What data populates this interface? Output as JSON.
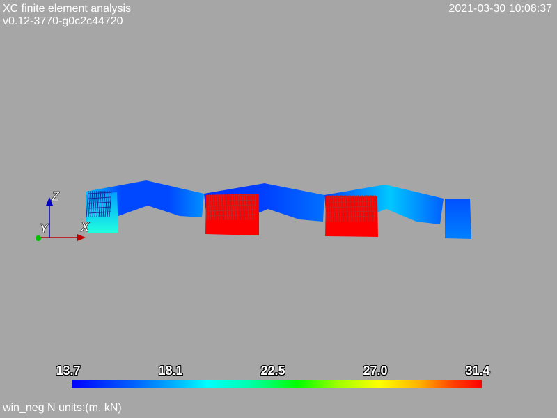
{
  "header": {
    "app_title": "XC finite element analysis",
    "version": "v0.12-3770-g0c2c44720",
    "datetime": "2021-03-30 10:08:37"
  },
  "axes": {
    "x_label": "X",
    "y_label": "Y",
    "z_label": "Z",
    "x_color": "#c00000",
    "y_color": "#00c000",
    "z_color": "#0000c0"
  },
  "colorbar": {
    "ticks": [
      "13.7",
      "18.1",
      "22.5",
      "27.0",
      "31.4"
    ],
    "min": 13.7,
    "max": 31.4
  },
  "footer": {
    "units_label": "win_neg N units:(m, kN)"
  },
  "colors": {
    "background": "#a6a6a6",
    "high": "#ff0000",
    "low": "#0000ff"
  }
}
